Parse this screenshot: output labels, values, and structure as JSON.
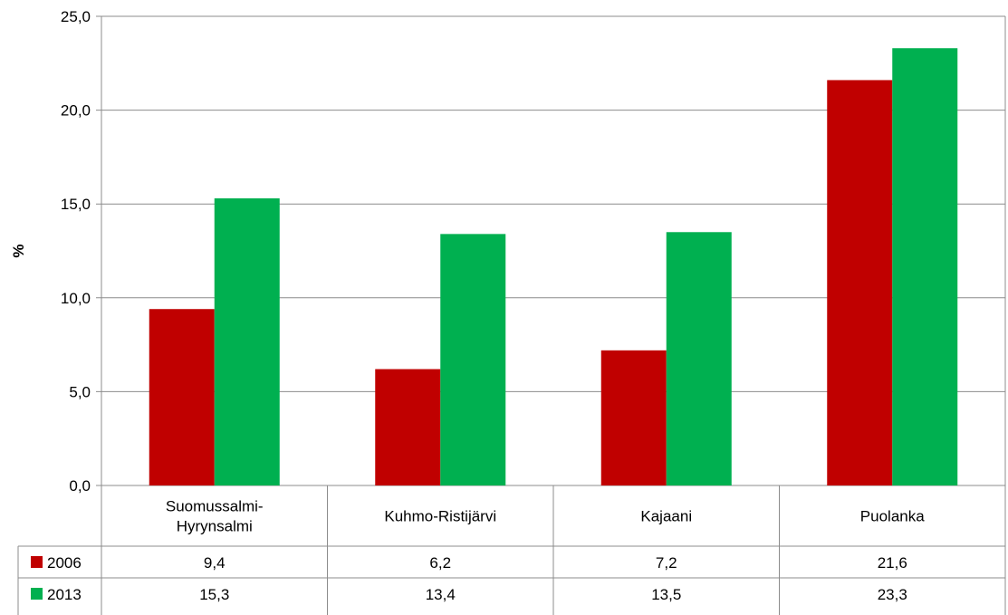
{
  "chart_data": {
    "type": "bar",
    "title": "",
    "xlabel": "",
    "ylabel": "%",
    "ylim": [
      0,
      25
    ],
    "yticks": [
      "0,0",
      "5,0",
      "10,0",
      "15,0",
      "20,0",
      "25,0"
    ],
    "categories": [
      [
        "Suomussalmi-",
        "Hyrynsalmi"
      ],
      [
        "Kuhmo-Ristijärvi"
      ],
      [
        "Kajaani"
      ],
      [
        "Puolanka"
      ]
    ],
    "series": [
      {
        "name": "2006",
        "color": "#C00000",
        "values": [
          9.4,
          6.2,
          7.2,
          21.6
        ],
        "labels": [
          "9,4",
          "6,2",
          "7,2",
          "21,6"
        ]
      },
      {
        "name": "2013",
        "color": "#00B050",
        "values": [
          15.3,
          13.4,
          13.5,
          23.3
        ],
        "labels": [
          "15,3",
          "13,4",
          "13,5",
          "23,3"
        ]
      }
    ],
    "grid": true,
    "legend": "data-table"
  }
}
